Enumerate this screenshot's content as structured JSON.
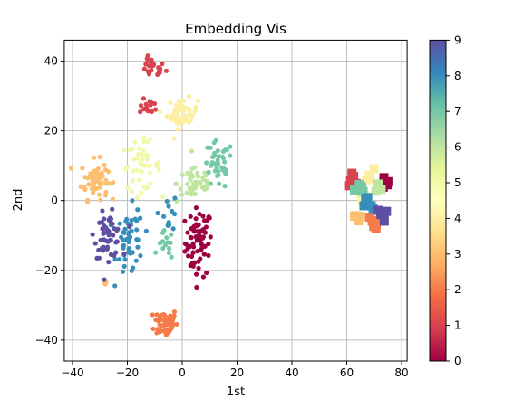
{
  "chart_data": {
    "type": "scatter",
    "title": "Embedding Vis",
    "xlabel": "1st",
    "ylabel": "2nd",
    "xlim": [
      -43,
      82
    ],
    "ylim": [
      -46,
      46
    ],
    "grid": true,
    "x_ticks": [
      -40,
      -20,
      0,
      20,
      40,
      60,
      80
    ],
    "x_tick_labels": [
      "−40",
      "−20",
      "0",
      "20",
      "40",
      "60",
      "80"
    ],
    "y_ticks": [
      40,
      20,
      0,
      -20,
      -40
    ],
    "y_tick_labels": [
      "40",
      "20",
      "0",
      "−20",
      "−40"
    ],
    "colorbar": {
      "colormap": "Spectral",
      "range": [
        0,
        9
      ],
      "ticks": [
        0,
        1,
        2,
        3,
        4,
        5,
        6,
        7,
        8,
        9
      ],
      "tick_labels": [
        "0",
        "1",
        "2",
        "3",
        "4",
        "5",
        "6",
        "7",
        "8",
        "9"
      ],
      "colors": [
        "#9e0142",
        "#d53e4f",
        "#f46d43",
        "#fdae61",
        "#fee08b",
        "#ffffbf",
        "#e6f598",
        "#abdda4",
        "#66c2a5",
        "#3288bd",
        "#5e4fa2"
      ]
    },
    "clusters": [
      {
        "label": 0,
        "center": [
          6,
          -12
        ],
        "spread": [
          3.5,
          7
        ],
        "count": 70,
        "marker": "circle"
      },
      {
        "label": 1,
        "center": [
          -11,
          38
        ],
        "spread": [
          3.5,
          2
        ],
        "count": 25,
        "marker": "circle"
      },
      {
        "label": 1,
        "center": [
          -12,
          27
        ],
        "spread": [
          2.5,
          1.5
        ],
        "count": 14,
        "marker": "circle"
      },
      {
        "label": 2,
        "center": [
          -6,
          -35
        ],
        "spread": [
          3,
          3
        ],
        "count": 55,
        "marker": "circle"
      },
      {
        "label": 3,
        "center": [
          -32,
          6
        ],
        "spread": [
          3.5,
          4
        ],
        "count": 60,
        "marker": "circle"
      },
      {
        "label": 3,
        "center": [
          -28,
          -24
        ],
        "spread": [
          1.5,
          1
        ],
        "count": 5,
        "marker": "circle"
      },
      {
        "label": 4,
        "center": [
          0,
          25
        ],
        "spread": [
          4,
          3
        ],
        "count": 50,
        "marker": "circle"
      },
      {
        "label": 5,
        "center": [
          -15,
          10
        ],
        "spread": [
          5,
          5
        ],
        "count": 45,
        "marker": "circle"
      },
      {
        "label": 6,
        "center": [
          5,
          5
        ],
        "spread": [
          5,
          4
        ],
        "count": 45,
        "marker": "circle"
      },
      {
        "label": 7,
        "center": [
          13,
          10
        ],
        "spread": [
          4,
          5
        ],
        "count": 40,
        "marker": "circle"
      },
      {
        "label": 7,
        "center": [
          -6,
          -13
        ],
        "spread": [
          2,
          3
        ],
        "count": 14,
        "marker": "circle"
      },
      {
        "label": 8,
        "center": [
          -19,
          -12
        ],
        "spread": [
          3.5,
          7
        ],
        "count": 50,
        "marker": "circle"
      },
      {
        "label": 8,
        "center": [
          -5,
          -3
        ],
        "spread": [
          2.5,
          4
        ],
        "count": 12,
        "marker": "circle"
      },
      {
        "label": 9,
        "center": [
          -27,
          -10
        ],
        "spread": [
          3.5,
          4.5
        ],
        "count": 60,
        "marker": "circle"
      },
      {
        "label": 0,
        "center": [
          74,
          5
        ],
        "spread": [
          1.2,
          1.5
        ],
        "count": 6,
        "marker": "square"
      },
      {
        "label": 1,
        "center": [
          62,
          6
        ],
        "spread": [
          1.2,
          1.5
        ],
        "count": 6,
        "marker": "square"
      },
      {
        "label": 2,
        "center": [
          70,
          -6
        ],
        "spread": [
          1.5,
          1.2
        ],
        "count": 6,
        "marker": "square"
      },
      {
        "label": 3,
        "center": [
          63,
          -5
        ],
        "spread": [
          1.2,
          1.5
        ],
        "count": 6,
        "marker": "square"
      },
      {
        "label": 4,
        "center": [
          68,
          7
        ],
        "spread": [
          1.3,
          1.5
        ],
        "count": 6,
        "marker": "square"
      },
      {
        "label": 5,
        "center": [
          66,
          1
        ],
        "spread": [
          1.5,
          1.5
        ],
        "count": 6,
        "marker": "square"
      },
      {
        "label": 6,
        "center": [
          71,
          3
        ],
        "spread": [
          1.5,
          1.5
        ],
        "count": 6,
        "marker": "square"
      },
      {
        "label": 7,
        "center": [
          65,
          3
        ],
        "spread": [
          1.5,
          1.5
        ],
        "count": 6,
        "marker": "square"
      },
      {
        "label": 8,
        "center": [
          68,
          -1
        ],
        "spread": [
          1.2,
          2
        ],
        "count": 6,
        "marker": "square"
      },
      {
        "label": 9,
        "center": [
          73,
          -4
        ],
        "spread": [
          1.3,
          1.5
        ],
        "count": 6,
        "marker": "square"
      }
    ]
  }
}
